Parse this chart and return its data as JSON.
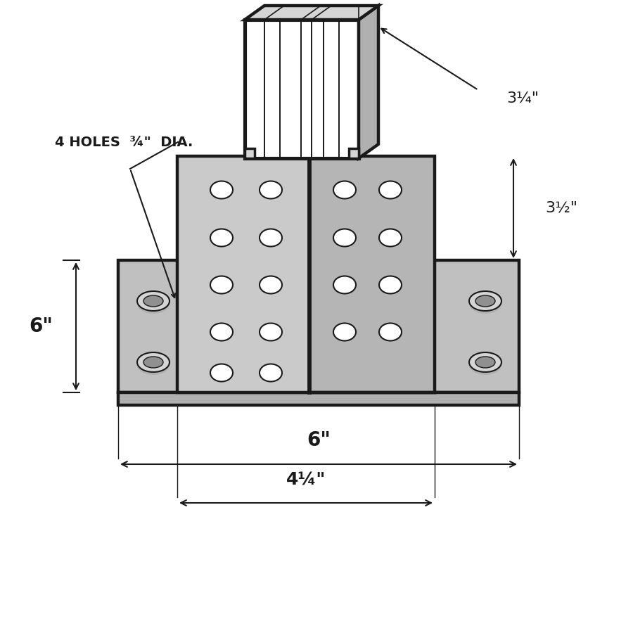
{
  "bg_color": "#ffffff",
  "line_color": "#1a1a1a",
  "gray": "#c0c0c0",
  "gray2": "#b0b0b0",
  "gray3": "#d5d5d5",
  "gray_dark": "#909090",
  "white": "#ffffff",
  "dim_6in_horiz": "6\"",
  "dim_425_horiz": "4¼\"",
  "dim_6in_vert": "6\"",
  "dim_314": "3¼\"",
  "dim_312": "3½\"",
  "holes_label": "4 HOLES  ¾\"  DIA."
}
